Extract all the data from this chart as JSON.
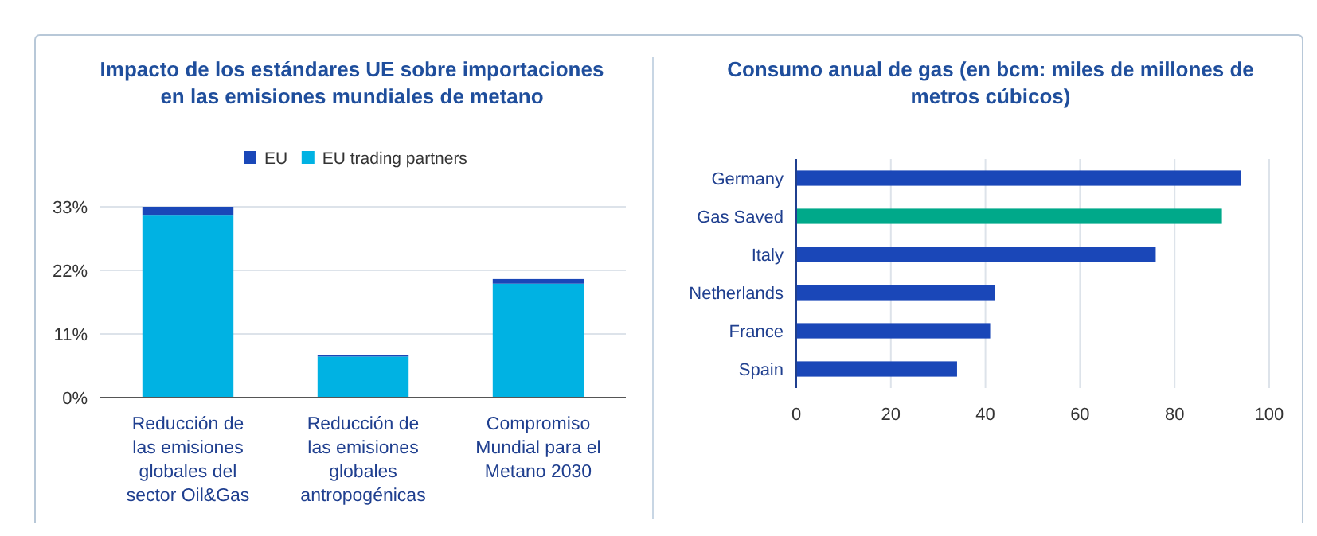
{
  "chart_data": [
    {
      "type": "bar",
      "title": "Impacto de los estándares UE sobre importaciones en las emisiones mundiales de metano",
      "stacked": true,
      "categories": [
        "Reducción de las emisiones globales del sector Oil&Gas",
        "Reducción de las emisiones globales antropogénicas",
        "Compromiso Mundial para el Metano 2030"
      ],
      "series": [
        {
          "name": "EU trading partners",
          "color": "#00b2e3",
          "values": [
            31.6,
            7.1,
            19.7
          ]
        },
        {
          "name": "EU",
          "color": "#1a47b8",
          "values": [
            1.4,
            0.2,
            0.8
          ]
        }
      ],
      "ylim": [
        0,
        33
      ],
      "yticks": [
        {
          "value": 0,
          "label": "0%"
        },
        {
          "value": 11,
          "label": "11%"
        },
        {
          "value": 22,
          "label": "22%"
        },
        {
          "value": 33,
          "label": "33%"
        }
      ],
      "grid": "y",
      "legend": "top"
    },
    {
      "type": "bar",
      "orientation": "horizontal",
      "title": "Consumo anual de gas (en bcm: miles de millones de metros cúbicos)",
      "categories": [
        "Germany",
        "Gas Saved",
        "Italy",
        "Netherlands",
        "France",
        "Spain"
      ],
      "values": [
        94,
        90,
        76,
        42,
        41,
        34
      ],
      "colors": [
        "#1a47b8",
        "#00a98a",
        "#1a47b8",
        "#1a47b8",
        "#1a47b8",
        "#1a47b8"
      ],
      "xlim": [
        0,
        100
      ],
      "xticks": [
        0,
        20,
        40,
        60,
        80,
        100
      ],
      "grid": "x"
    }
  ]
}
